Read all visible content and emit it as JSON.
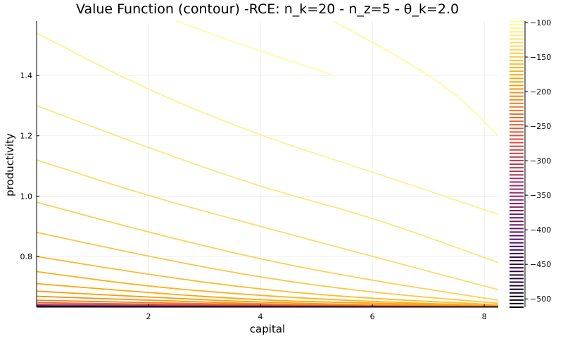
{
  "chart_data": {
    "type": "contour",
    "title": "Value Function (contour) -RCE: n_k=20 - n_z=5 - θ_k=2.0",
    "xlabel": "capital",
    "ylabel": "productivity",
    "xlim": [
      0.0,
      8.25
    ],
    "ylim": [
      0.632,
      1.58
    ],
    "x_ticks": [
      2,
      4,
      6,
      8
    ],
    "x_tick_labels": [
      "2",
      "4",
      "6",
      "8"
    ],
    "y_ticks": [
      0.8,
      1.0,
      1.2,
      1.4
    ],
    "y_tick_labels": [
      "0.8",
      "1.0",
      "1.2",
      "1.4"
    ],
    "grid": true,
    "colorbar": {
      "range": [
        -512,
        -98
      ],
      "ticks": [
        -100,
        -150,
        -200,
        -250,
        -300,
        -350,
        -400,
        -450,
        -500
      ],
      "tick_labels": [
        "−100",
        "−150",
        "−200",
        "−250",
        "−300",
        "−350",
        "−400",
        "−450",
        "−500"
      ],
      "colormap": "inferno",
      "stops": [
        "#000004",
        "#420a68",
        "#932667",
        "#dd513a",
        "#fca50a",
        "#fcffa4"
      ]
    },
    "contours": [
      {
        "x": [
          2.5,
          4.0,
          5.0,
          5.3
        ],
        "y": [
          1.58,
          1.48,
          1.42,
          1.4
        ]
      },
      {
        "x": [
          5.3,
          6.5,
          7.5,
          8.25
        ],
        "y": [
          1.58,
          1.46,
          1.34,
          1.2
        ]
      },
      {
        "x": [
          0.0,
          2.0,
          4.0,
          6.0,
          8.25
        ],
        "y": [
          1.54,
          1.35,
          1.2,
          1.08,
          0.94
        ]
      },
      {
        "x": [
          0.0,
          2.0,
          4.0,
          6.0,
          8.25
        ],
        "y": [
          1.3,
          1.16,
          1.03,
          0.93,
          0.78
        ]
      },
      {
        "x": [
          0.0,
          2.0,
          4.0,
          6.0,
          8.25
        ],
        "y": [
          1.12,
          1.0,
          0.9,
          0.8,
          0.69
        ]
      },
      {
        "x": [
          0.0,
          2.0,
          4.0,
          6.0,
          8.25
        ],
        "y": [
          0.98,
          0.88,
          0.79,
          0.72,
          0.655
        ]
      },
      {
        "x": [
          0.0,
          2.0,
          4.0,
          6.0,
          8.25
        ],
        "y": [
          0.88,
          0.8,
          0.73,
          0.68,
          0.645
        ]
      },
      {
        "x": [
          0.0,
          2.0,
          4.0,
          6.0,
          8.25
        ],
        "y": [
          0.8,
          0.74,
          0.69,
          0.66,
          0.64
        ]
      },
      {
        "x": [
          0.0,
          2.0,
          4.0,
          6.0,
          8.25
        ],
        "y": [
          0.75,
          0.7,
          0.67,
          0.65,
          0.637
        ]
      },
      {
        "x": [
          0.0,
          2.0,
          4.0,
          6.0,
          8.25
        ],
        "y": [
          0.71,
          0.68,
          0.655,
          0.645,
          0.636
        ]
      },
      {
        "x": [
          0.0,
          2.0,
          4.0,
          6.0,
          8.25
        ],
        "y": [
          0.685,
          0.665,
          0.648,
          0.64,
          0.635
        ]
      },
      {
        "x": [
          0.0,
          2.0,
          4.0,
          6.0,
          8.25
        ],
        "y": [
          0.668,
          0.655,
          0.643,
          0.637,
          0.634
        ]
      },
      {
        "x": [
          0.0,
          2.0,
          4.0,
          6.0,
          8.25
        ],
        "y": [
          0.655,
          0.647,
          0.64,
          0.636,
          0.634
        ]
      },
      {
        "x": [
          0.0,
          2.0,
          4.0,
          6.0,
          8.25
        ],
        "y": [
          0.647,
          0.642,
          0.638,
          0.635,
          0.633
        ]
      },
      {
        "x": [
          0.0,
          2.0,
          4.0,
          6.0,
          8.25
        ],
        "y": [
          0.641,
          0.638,
          0.636,
          0.634,
          0.633
        ]
      },
      {
        "x": [
          0.0,
          1.5,
          3.0,
          8.25
        ],
        "y": [
          0.637,
          0.635,
          0.634,
          0.633
        ]
      },
      {
        "x": [
          0.0,
          1.5,
          3.0,
          8.25
        ],
        "y": [
          0.635,
          0.634,
          0.633,
          0.632
        ]
      }
    ],
    "contour_levels": [
      -100,
      -102,
      -110,
      -120,
      -130,
      -140,
      -150,
      -160,
      -170,
      -180,
      -190,
      -200,
      -220,
      -250,
      -300,
      -380,
      -450
    ]
  }
}
